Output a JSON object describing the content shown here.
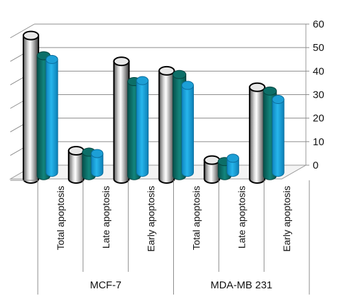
{
  "chart_data": {
    "type": "bar",
    "title": "",
    "xlabel": "",
    "ylabel": "",
    "ylim": [
      0,
      60
    ],
    "yticks": [
      "0",
      "10",
      "20",
      "30",
      "40",
      "50",
      "60"
    ],
    "categories": [
      {
        "label": "Total apoptosis",
        "group": "MCF-7"
      },
      {
        "label": "Late apoptosis",
        "group": "MCF-7"
      },
      {
        "label": "Early  apoptosis",
        "group": "MCF-7"
      },
      {
        "label": "Total  apoptosis",
        "group": "MDA-MB 231"
      },
      {
        "label": "Late  apoptosis",
        "group": "MDA-MB 231"
      },
      {
        "label": "Early apoptosis",
        "group": "MDA-MB 231"
      }
    ],
    "groups": [
      "MCF-7",
      "MDA-MB 231"
    ],
    "series": [
      {
        "values": [
          61,
          12,
          50,
          46,
          8,
          39
        ]
      },
      {
        "values": [
          51,
          10,
          40,
          43,
          6,
          36
        ]
      },
      {
        "values": [
          48,
          8,
          39,
          37,
          6,
          31
        ]
      }
    ],
    "grid": true,
    "legend": "none",
    "colors": [
      "#b8b8b8",
      "#0f7a73",
      "#1aa7de"
    ]
  }
}
